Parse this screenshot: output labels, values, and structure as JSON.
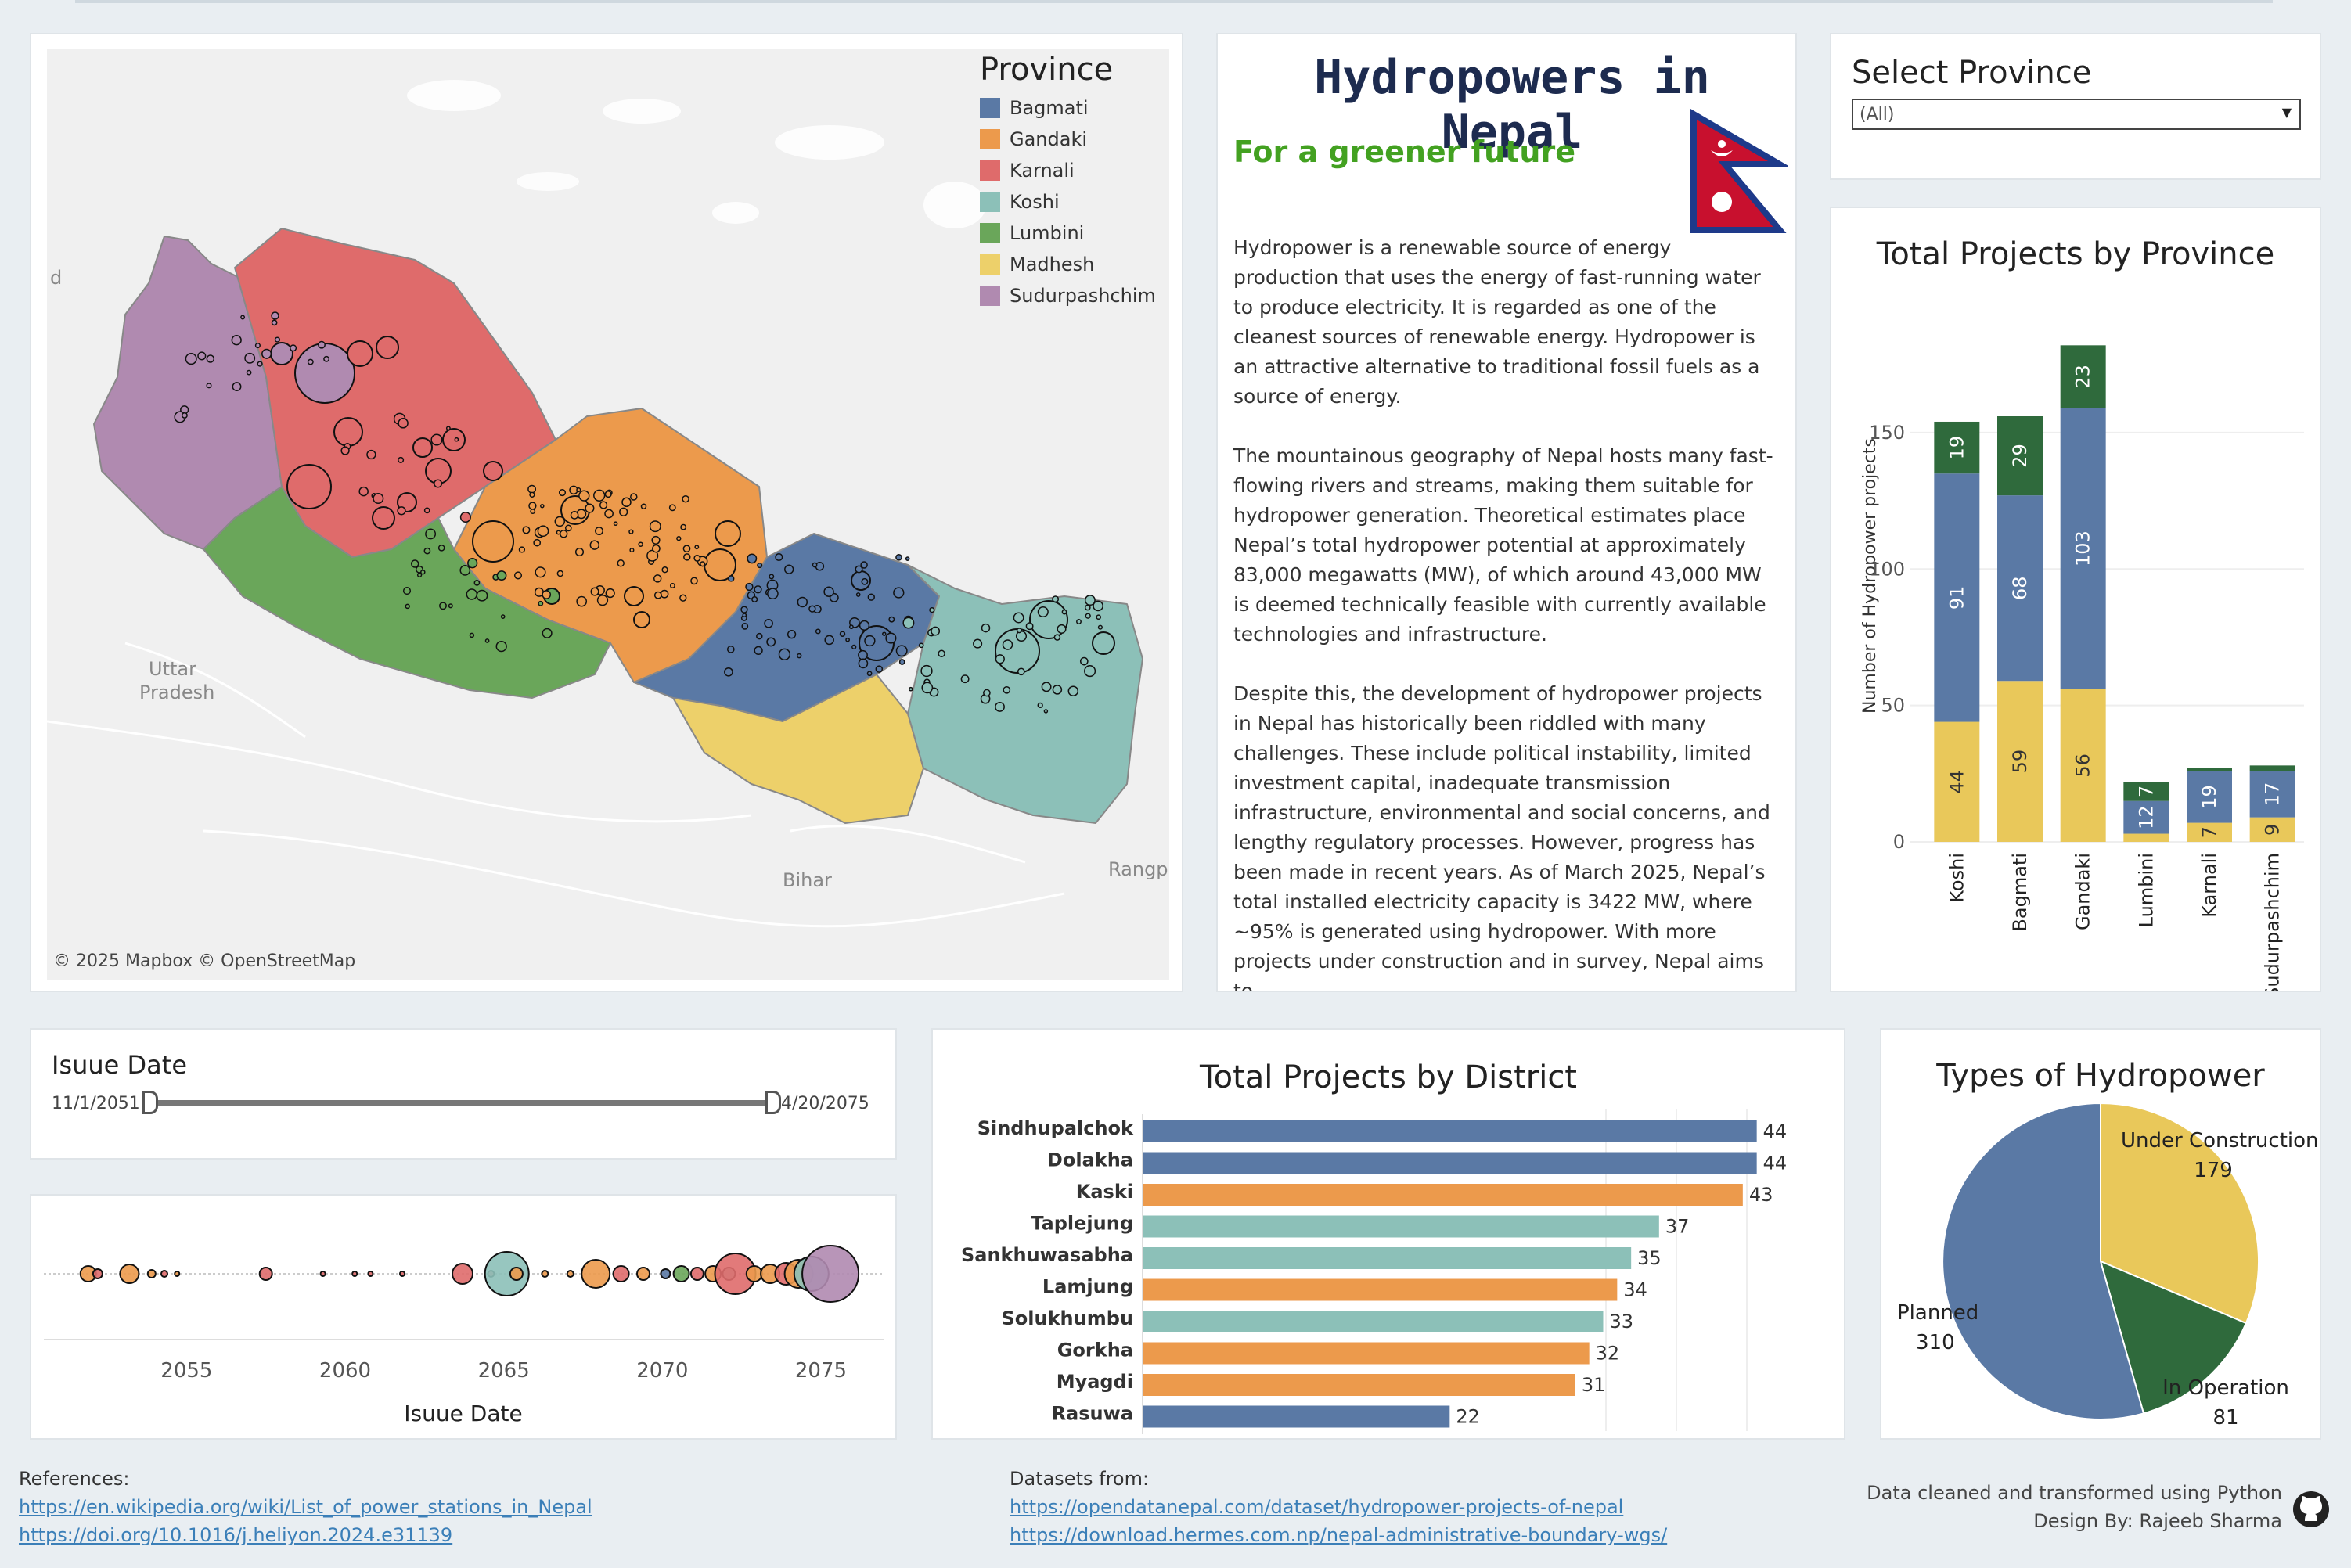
{
  "map": {
    "legend_title": "Province",
    "provinces": [
      {
        "name": "Bagmati",
        "color": "#5a79a5"
      },
      {
        "name": "Gandaki",
        "color": "#ec9a4c"
      },
      {
        "name": "Karnali",
        "color": "#df6b6b"
      },
      {
        "name": "Koshi",
        "color": "#8cc0b8"
      },
      {
        "name": "Lumbini",
        "color": "#6aa65a"
      },
      {
        "name": "Madhesh",
        "color": "#edd06a"
      },
      {
        "name": "Sudurpashchim",
        "color": "#b08ab0"
      }
    ],
    "place_labels": {
      "uttar": "Uttar",
      "pradesh": "Pradesh",
      "bihar": "Bihar",
      "rangpur": "Rangp",
      "edge": "d"
    },
    "attribution": "© 2025 Mapbox  © OpenStreetMap"
  },
  "intro": {
    "title": "Hydropowers in Nepal",
    "subtitle": "For a greener future",
    "paragraphs": [
      "Hydropower is a renewable source of energy production that uses the energy of fast-running water to produce electricity. It is regarded as one of the cleanest sources of renewable energy. Hydropower is an attractive alternative to traditional fossil fuels as a source of energy.",
      "The mountainous geography of Nepal hosts many fast-flowing rivers and streams, making them suitable for hydropower generation. Theoretical estimates place Nepal’s total hydropower potential at approximately 83,000 megawatts (MW), of which around 43,000 MW is deemed technically feasible with currently available technologies and infrastructure.",
      "Despite this, the development of hydropower projects in Nepal has historically been riddled with many challenges. These include political instability, limited investment capital, inadequate transmission infrastructure, environmental and social concerns, and lengthy regulatory processes. However, progress has been made in recent years. As of March 2025, Nepal’s total installed electricity capacity is 3422 MW, where ~95% is generated using hydropower. With more projects under construction and in survey, Nepal aims to"
    ]
  },
  "select": {
    "title": "Select Province",
    "value": "(All)"
  },
  "province_chart": {
    "title": "Total Projects by Province",
    "ylabel": "Number of Hydropower projects",
    "yticks": [
      0,
      50,
      100,
      150
    ],
    "categories": [
      "Koshi",
      "Bagmati",
      "Gandaki",
      "Lumbini",
      "Karnali",
      "Sudurpashchim"
    ],
    "series": [
      {
        "name": "Under Construction",
        "color": "#e9c85a",
        "values": [
          44,
          59,
          56,
          3,
          7,
          9
        ]
      },
      {
        "name": "Planned",
        "color": "#5a79a5",
        "values": [
          91,
          68,
          103,
          12,
          19,
          17
        ]
      },
      {
        "name": "In Operation",
        "color": "#2f6a3c",
        "values": [
          19,
          29,
          23,
          7,
          1,
          2
        ]
      }
    ],
    "labels": [
      [
        "44",
        "91",
        "19"
      ],
      [
        "59",
        "68",
        "29"
      ],
      [
        "56",
        "103",
        "23"
      ],
      [
        "",
        "12",
        "7"
      ],
      [
        "7",
        "19",
        ""
      ],
      [
        "9",
        "17",
        ""
      ]
    ]
  },
  "issue_filter": {
    "title": "Isuue Date",
    "start": "11/1/2051",
    "end": "4/20/2075"
  },
  "timeline": {
    "xlabel": "Isuue Date",
    "ticks": [
      2055,
      2060,
      2065,
      2070,
      2075
    ],
    "xlim": [
      2050.5,
      2077
    ]
  },
  "district_chart": {
    "title": "Total Projects by District",
    "categories": [
      "Sindhupalchok",
      "Dolakha",
      "Kaski",
      "Taplejung",
      "Sankhuwasabha",
      "Lamjung",
      "Solukhumbu",
      "Gorkha",
      "Myagdi",
      "Rasuwa"
    ],
    "values": [
      44,
      44,
      43,
      37,
      35,
      34,
      33,
      32,
      31,
      22
    ],
    "colors": [
      "#5a79a5",
      "#5a79a5",
      "#ec9a4c",
      "#8cc0b8",
      "#8cc0b8",
      "#ec9a4c",
      "#8cc0b8",
      "#ec9a4c",
      "#ec9a4c",
      "#5a79a5"
    ],
    "xlim": [
      0,
      48
    ]
  },
  "type_chart": {
    "title": "Types of Hydropower",
    "slices": [
      {
        "name": "Under Construction",
        "value": 179,
        "color": "#e9c85a"
      },
      {
        "name": "In Operation",
        "value": 81,
        "color": "#2f6a3c"
      },
      {
        "name": "Planned",
        "value": 310,
        "color": "#5a79a5"
      }
    ]
  },
  "footer": {
    "references_label": "References:",
    "references": [
      "https://en.wikipedia.org/wiki/List_of_power_stations_in_Nepal",
      "https://doi.org/10.1016/j.heliyon.2024.e31139"
    ],
    "datasets_label": "Datasets from:",
    "datasets": [
      "https://opendatanepal.com/dataset/hydropower-projects-of-nepal",
      "https://download.hermes.com.np/nepal-administrative-boundary-wgs/"
    ],
    "credit_line1": "Data cleaned and transformed using Python",
    "credit_line2": "Design By: Rajeeb Sharma"
  }
}
